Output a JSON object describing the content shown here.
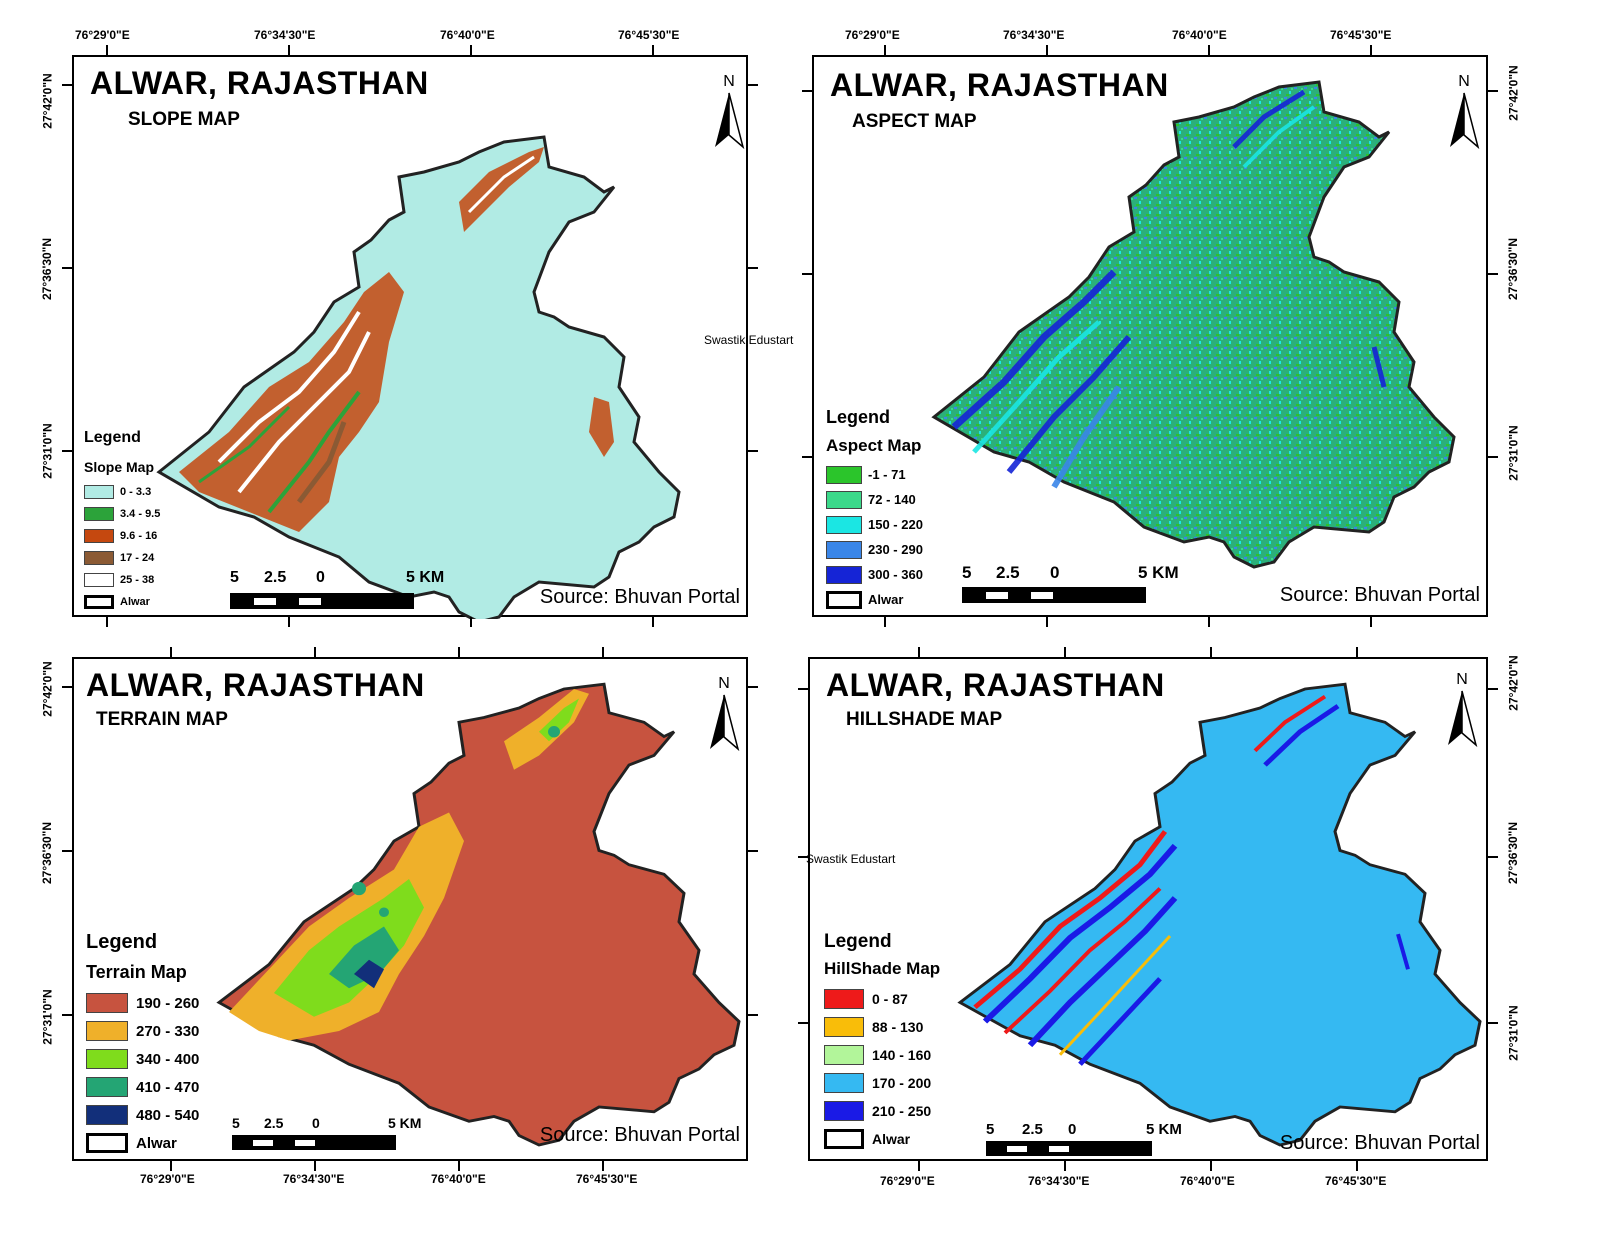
{
  "watermark": "Swastik Edustart",
  "coords": {
    "lon": [
      "76°29'0\"E",
      "76°34'30\"E",
      "76°40'0\"E",
      "76°45'30\"E"
    ],
    "lat": [
      "27°42'0\"N",
      "27°36'30\"N",
      "27°31'0\"N"
    ]
  },
  "panels": {
    "slope": {
      "title": "ALWAR, RAJASTHAN",
      "subtitle": "SLOPE MAP",
      "north": "N",
      "legend_title": "Legend",
      "legend_sub": "Slope Map",
      "items": [
        {
          "label": "0 - 3.3",
          "color": "#b1ebe4"
        },
        {
          "label": "3.4 - 9.5",
          "color": "#2ca33a"
        },
        {
          "label": "9.6 - 16",
          "color": "#c5480f"
        },
        {
          "label": "17 - 24",
          "color": "#8b5a34"
        },
        {
          "label": "25 - 38",
          "color": "#ffffff"
        }
      ],
      "boundary_label": "Alwar",
      "scale": [
        "5",
        "2.5",
        "0",
        "5 KM"
      ],
      "source": "Source: Bhuvan Portal"
    },
    "aspect": {
      "title": "ALWAR, RAJASTHAN",
      "subtitle": "ASPECT MAP",
      "north": "N",
      "legend_title": "Legend",
      "legend_sub": "Aspect Map",
      "items": [
        {
          "label": "-1 - 71",
          "color": "#2bc52b"
        },
        {
          "label": "72 - 140",
          "color": "#3bd98a"
        },
        {
          "label": "150 - 220",
          "color": "#1be6e3"
        },
        {
          "label": "230 - 290",
          "color": "#3a86e8"
        },
        {
          "label": "300 - 360",
          "color": "#1524d6"
        }
      ],
      "boundary_label": "Alwar",
      "scale": [
        "5",
        "2.5",
        "0",
        "5 KM"
      ],
      "source": "Source: Bhuvan Portal"
    },
    "terrain": {
      "title": "ALWAR, RAJASTHAN",
      "subtitle": "TERRAIN MAP",
      "north": "N",
      "legend_title": "Legend",
      "legend_sub": "Terrain Map",
      "items": [
        {
          "label": "190 - 260",
          "color": "#c7533f"
        },
        {
          "label": "270 - 330",
          "color": "#efb02a"
        },
        {
          "label": "340 - 400",
          "color": "#7fdc1c"
        },
        {
          "label": "410 - 470",
          "color": "#24a574"
        },
        {
          "label": "480 - 540",
          "color": "#122f7a"
        }
      ],
      "boundary_label": "Alwar",
      "scale": [
        "5",
        "2.5",
        "0",
        "5 KM"
      ],
      "source": "Source: Bhuvan Portal"
    },
    "hillshade": {
      "title": "ALWAR, RAJASTHAN",
      "subtitle": "HILLSHADE MAP",
      "north": "N",
      "legend_title": "Legend",
      "legend_sub": "HillShade Map",
      "items": [
        {
          "label": "0 - 87",
          "color": "#ee1a1a"
        },
        {
          "label": "88 - 130",
          "color": "#f9bd09"
        },
        {
          "label": "140 - 160",
          "color": "#b2f59a"
        },
        {
          "label": "170 - 200",
          "color": "#35b9f2"
        },
        {
          "label": "210 - 250",
          "color": "#1a1ae6"
        }
      ],
      "boundary_label": "Alwar",
      "scale": [
        "5",
        "2.5",
        "0",
        "5 KM"
      ],
      "source": "Source: Bhuvan Portal"
    }
  }
}
